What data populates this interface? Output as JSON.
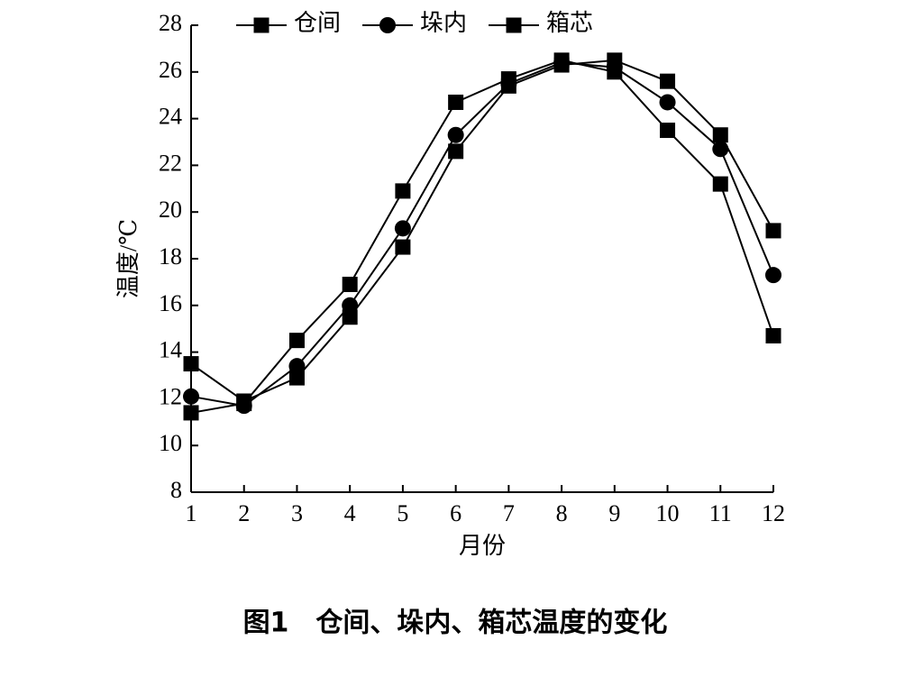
{
  "chart_data": {
    "type": "line",
    "caption": "图1　仓间、垛内、箱芯温度的变化",
    "x_label": "月份",
    "y_label": "温度/℃",
    "x": [
      1,
      2,
      3,
      4,
      5,
      6,
      7,
      8,
      9,
      10,
      11,
      12
    ],
    "xlim": [
      1,
      12
    ],
    "xticks": [
      1,
      2,
      3,
      4,
      5,
      6,
      7,
      8,
      9,
      10,
      11,
      12
    ],
    "ylim": [
      8,
      28
    ],
    "yticks": [
      8,
      10,
      12,
      14,
      16,
      18,
      20,
      22,
      24,
      26,
      28
    ],
    "series": [
      {
        "name": "仓间",
        "color": "#000000",
        "marker": "square",
        "values": [
          11.4,
          11.8,
          14.5,
          16.9,
          20.9,
          24.7,
          25.7,
          26.5,
          26.0,
          23.5,
          21.2,
          14.7
        ]
      },
      {
        "name": "垛内",
        "color": "#000000",
        "marker": "circle",
        "values": [
          12.1,
          11.7,
          13.4,
          16.0,
          19.3,
          23.3,
          25.5,
          26.4,
          26.2,
          24.7,
          22.7,
          17.3
        ]
      },
      {
        "name": "箱芯",
        "color": "#000000",
        "marker": "square",
        "values": [
          13.5,
          11.9,
          12.9,
          15.5,
          18.5,
          22.6,
          25.4,
          26.3,
          26.5,
          25.6,
          23.3,
          19.2
        ]
      }
    ]
  }
}
